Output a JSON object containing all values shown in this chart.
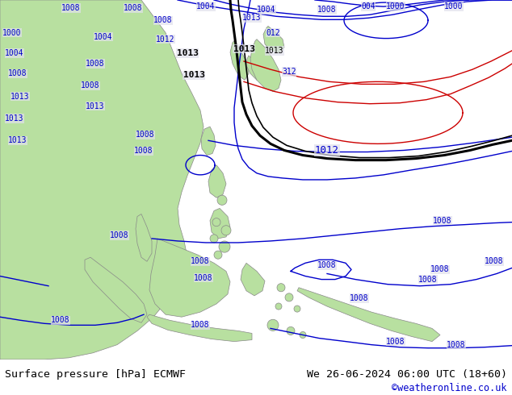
{
  "title_left": "Surface pressure [hPa] ECMWF",
  "title_right": "We 26-06-2024 06:00 UTC (18+60)",
  "credit": "©weatheronline.co.uk",
  "bg_color": "#e0e0ec",
  "land_color": "#b8e0a0",
  "text_color": "#000000",
  "blue_color": "#0000cc",
  "red_color": "#cc0000",
  "black_color": "#000000",
  "gray_color": "#888888",
  "footer_bg": "#c8c8d0",
  "fig_width": 6.34,
  "fig_height": 4.9,
  "dpi": 100
}
